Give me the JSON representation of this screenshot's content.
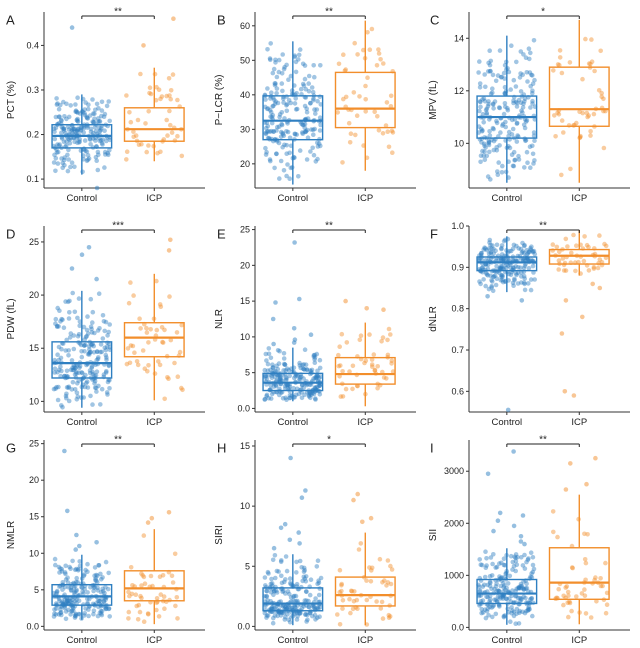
{
  "colors": {
    "control": "#2E7FC1",
    "icp": "#F28E2B",
    "axis": "#333333"
  },
  "chart_data": [
    {
      "panel": "A",
      "type": "box",
      "ylabel": "PCT (%)",
      "ylim": [
        0.08,
        0.475
      ],
      "yticks": [
        0.1,
        0.2,
        0.3,
        0.4
      ],
      "categories": [
        "Control",
        "ICP"
      ],
      "significance": "**",
      "boxes": [
        {
          "group": "Control",
          "q1": 0.17,
          "median": 0.197,
          "q3": 0.222,
          "whisker_low": 0.11,
          "whisker_high": 0.29,
          "outliers": [
            0.44,
            0.08
          ],
          "n": 220
        },
        {
          "group": "ICP",
          "q1": 0.185,
          "median": 0.212,
          "q3": 0.26,
          "whisker_low": 0.14,
          "whisker_high": 0.35,
          "outliers": [
            0.4,
            0.46
          ],
          "n": 50
        }
      ]
    },
    {
      "panel": "B",
      "type": "box",
      "ylabel": "P−LCR (%)",
      "ylim": [
        13,
        64
      ],
      "yticks": [
        20,
        30,
        40,
        50,
        60
      ],
      "categories": [
        "Control",
        "ICP"
      ],
      "significance": "**",
      "boxes": [
        {
          "group": "Control",
          "q1": 27,
          "median": 32.5,
          "q3": 39.7,
          "whisker_low": 14,
          "whisker_high": 55.5,
          "outliers": [],
          "n": 220
        },
        {
          "group": "ICP",
          "q1": 30.5,
          "median": 36,
          "q3": 46.5,
          "whisker_low": 18,
          "whisker_high": 61.5,
          "outliers": [],
          "n": 50
        }
      ]
    },
    {
      "panel": "C",
      "type": "box",
      "ylabel": "MPV (fL)",
      "ylim": [
        8.3,
        15
      ],
      "yticks": [
        10,
        12,
        14
      ],
      "categories": [
        "Control",
        "ICP"
      ],
      "significance": "*",
      "boxes": [
        {
          "group": "Control",
          "q1": 10.2,
          "median": 11,
          "q3": 11.8,
          "whisker_low": 8.5,
          "whisker_high": 14.1,
          "outliers": [],
          "n": 220
        },
        {
          "group": "ICP",
          "q1": 10.65,
          "median": 11.3,
          "q3": 12.9,
          "whisker_low": 8.5,
          "whisker_high": 14.7,
          "outliers": [],
          "n": 50
        }
      ]
    },
    {
      "panel": "D",
      "type": "box",
      "ylabel": "PDW (fL)",
      "ylim": [
        9,
        26.5
      ],
      "yticks": [
        10,
        15,
        20,
        25
      ],
      "categories": [
        "Control",
        "ICP"
      ],
      "significance": "***",
      "boxes": [
        {
          "group": "Control",
          "q1": 12.2,
          "median": 13.6,
          "q3": 15.6,
          "whisker_low": 9.4,
          "whisker_high": 20.4,
          "outliers": [
            24.5,
            23.8,
            22.5,
            21.5
          ],
          "n": 220
        },
        {
          "group": "ICP",
          "q1": 14.2,
          "median": 16,
          "q3": 17.4,
          "whisker_low": 10.1,
          "whisker_high": 22,
          "outliers": [
            24.2,
            25.2
          ],
          "n": 50
        }
      ]
    },
    {
      "panel": "E",
      "type": "box",
      "ylabel": "NLR",
      "ylim": [
        -0.5,
        25.5
      ],
      "yticks": [
        0,
        5,
        10,
        15,
        20,
        25
      ],
      "categories": [
        "Control",
        "ICP"
      ],
      "significance": "**",
      "boxes": [
        {
          "group": "Control",
          "q1": 2.5,
          "median": 3.6,
          "q3": 4.9,
          "whisker_low": 1,
          "whisker_high": 8.5,
          "outliers": [
            23.2,
            15.3,
            14.8,
            12.5,
            11.2,
            10.3,
            9.6,
            9.2,
            9
          ],
          "n": 220
        },
        {
          "group": "ICP",
          "q1": 3.4,
          "median": 4.8,
          "q3": 7.1,
          "whisker_low": 0.3,
          "whisker_high": 12,
          "outliers": [
            15,
            14,
            13.8
          ],
          "n": 50
        }
      ]
    },
    {
      "panel": "F",
      "type": "box",
      "ylabel": "dNLR",
      "ylim": [
        0.55,
        1.0
      ],
      "yticks": [
        0.6,
        0.7,
        0.8,
        0.9,
        1.0
      ],
      "categories": [
        "Control",
        "ICP"
      ],
      "significance": "**",
      "boxes": [
        {
          "group": "Control",
          "q1": 0.892,
          "median": 0.912,
          "q3": 0.925,
          "whisker_low": 0.84,
          "whisker_high": 0.975,
          "outliers": [
            0.555,
            0.83,
            0.82
          ],
          "n": 220
        },
        {
          "group": "ICP",
          "q1": 0.908,
          "median": 0.928,
          "q3": 0.943,
          "whisker_low": 0.88,
          "whisker_high": 0.99,
          "outliers": [
            0.86,
            0.85,
            0.82,
            0.78,
            0.74,
            0.6,
            0.59
          ],
          "n": 50
        }
      ]
    },
    {
      "panel": "G",
      "type": "box",
      "ylabel": "NMLR",
      "ylim": [
        -0.5,
        25.5
      ],
      "yticks": [
        0,
        5,
        10,
        15,
        20,
        25
      ],
      "categories": [
        "Control",
        "ICP"
      ],
      "significance": "**",
      "boxes": [
        {
          "group": "Control",
          "q1": 2.9,
          "median": 4.1,
          "q3": 5.7,
          "whisker_low": 0.9,
          "whisker_high": 9.8,
          "outliers": [
            24,
            15.8,
            12.5,
            11.5,
            11,
            10.5
          ],
          "n": 220
        },
        {
          "group": "ICP",
          "q1": 3.5,
          "median": 5.2,
          "q3": 7.6,
          "whisker_low": 0.3,
          "whisker_high": 13.3,
          "outliers": [
            15.6,
            14.8,
            14.2
          ],
          "n": 50
        }
      ]
    },
    {
      "panel": "H",
      "type": "box",
      "ylabel": "SIRI",
      "ylim": [
        -0.3,
        15.5
      ],
      "yticks": [
        0,
        5,
        10,
        15
      ],
      "categories": [
        "Control",
        "ICP"
      ],
      "significance": "*",
      "boxes": [
        {
          "group": "Control",
          "q1": 1.3,
          "median": 1.9,
          "q3": 3.2,
          "whisker_low": 0.1,
          "whisker_high": 6,
          "outliers": [
            14,
            11.3,
            10.7,
            8.5,
            8.2,
            7.8,
            7.2,
            6.9,
            6.5
          ],
          "n": 220
        },
        {
          "group": "ICP",
          "q1": 1.7,
          "median": 2.6,
          "q3": 4.1,
          "whisker_low": 0.1,
          "whisker_high": 7.8,
          "outliers": [
            11,
            10.5,
            9,
            8.7
          ],
          "n": 50
        }
      ]
    },
    {
      "panel": "I",
      "type": "box",
      "ylabel": "SII",
      "ylim": [
        -50,
        3600
      ],
      "yticks": [
        0,
        1000,
        2000,
        3000
      ],
      "categories": [
        "Control",
        "ICP"
      ],
      "significance": "**",
      "boxes": [
        {
          "group": "Control",
          "q1": 460,
          "median": 650,
          "q3": 920,
          "whisker_low": 50,
          "whisker_high": 1520,
          "outliers": [
            3380,
            2950,
            2200,
            2150,
            2050,
            1950,
            1850,
            1750,
            1650,
            1600
          ],
          "n": 220
        },
        {
          "group": "ICP",
          "q1": 540,
          "median": 860,
          "q3": 1530,
          "whisker_low": 60,
          "whisker_high": 2550,
          "outliers": [
            3250,
            3150,
            2750,
            2650
          ],
          "n": 50
        }
      ]
    }
  ]
}
